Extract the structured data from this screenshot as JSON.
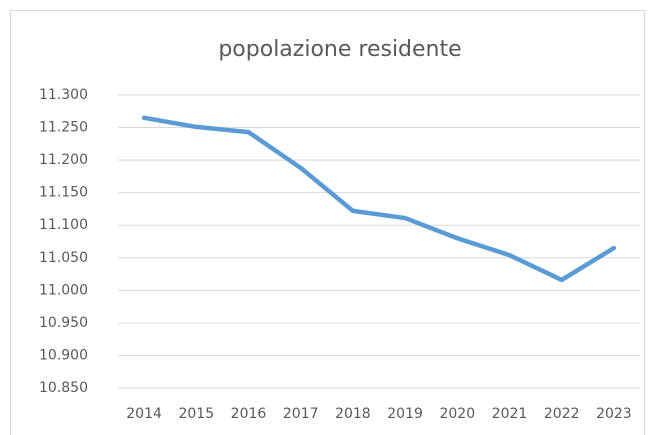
{
  "chart_data": {
    "type": "line",
    "title": "popolazione residente",
    "categories": [
      "2014",
      "2015",
      "2016",
      "2017",
      "2018",
      "2019",
      "2020",
      "2021",
      "2022",
      "2023"
    ],
    "series": [
      {
        "name": "popolazione residente",
        "color": "#5b9bd5",
        "values": [
          11265,
          11251,
          11243,
          11188,
          11122,
          11111,
          11080,
          11054,
          11016,
          11065
        ]
      }
    ],
    "ylim": [
      10850,
      11300
    ],
    "yticks": [
      {
        "value": 10850,
        "label": "10.850"
      },
      {
        "value": 10900,
        "label": "10.900"
      },
      {
        "value": 10950,
        "label": "10.950"
      },
      {
        "value": 11000,
        "label": "11.000"
      },
      {
        "value": 11050,
        "label": "11.050"
      },
      {
        "value": 11100,
        "label": "11.100"
      },
      {
        "value": 11150,
        "label": "11.150"
      },
      {
        "value": 11200,
        "label": "11.200"
      },
      {
        "value": 11250,
        "label": "11.250"
      },
      {
        "value": 11300,
        "label": "11.300"
      }
    ],
    "grid": true
  }
}
